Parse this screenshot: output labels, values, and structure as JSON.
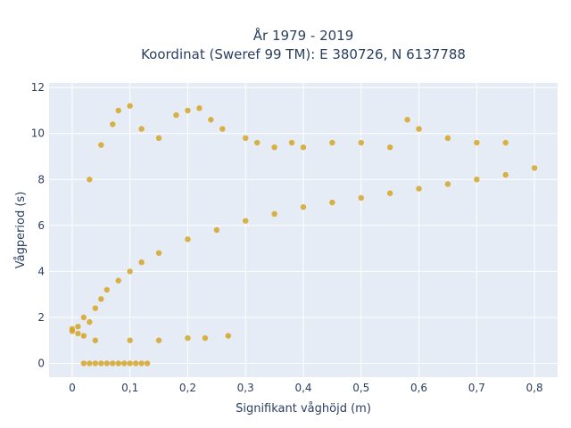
{
  "chart_data": {
    "type": "scatter",
    "title_line1": "År 1979 - 2019",
    "title_line2": "Koordinat (Sweref 99 TM): E 380726, N 6137788",
    "xlabel": "Signifikant våghöjd (m)",
    "ylabel": "Vågperiod (s)",
    "xlim": [
      -0.04,
      0.84
    ],
    "ylim": [
      -0.6,
      12.2
    ],
    "grid": true,
    "x_ticks": [
      0,
      0.1,
      0.2,
      0.3,
      0.4,
      0.5,
      0.6,
      0.7,
      0.8
    ],
    "x_tick_labels": [
      "0",
      "0,1",
      "0,2",
      "0,3",
      "0,4",
      "0,5",
      "0,6",
      "0,7",
      "0,8"
    ],
    "y_ticks": [
      0,
      2,
      4,
      6,
      8,
      10,
      12
    ],
    "y_tick_labels": [
      "0",
      "2",
      "4",
      "6",
      "8",
      "10",
      "12"
    ],
    "marker_color": "#D4A017",
    "plot_bg": "#E5ECF6",
    "series": [
      {
        "points": [
          [
            0.0,
            1.4
          ],
          [
            0.0,
            1.5
          ],
          [
            0.01,
            1.3
          ],
          [
            0.01,
            1.6
          ],
          [
            0.02,
            1.2
          ],
          [
            0.02,
            2.0
          ],
          [
            0.03,
            1.8
          ],
          [
            0.04,
            2.4
          ],
          [
            0.05,
            2.8
          ],
          [
            0.06,
            3.2
          ],
          [
            0.08,
            3.6
          ],
          [
            0.1,
            4.0
          ],
          [
            0.12,
            4.4
          ],
          [
            0.15,
            4.8
          ],
          [
            0.2,
            5.4
          ],
          [
            0.25,
            5.8
          ],
          [
            0.3,
            6.2
          ],
          [
            0.35,
            6.5
          ],
          [
            0.4,
            6.8
          ],
          [
            0.45,
            7.0
          ],
          [
            0.5,
            7.2
          ],
          [
            0.55,
            7.4
          ],
          [
            0.6,
            7.6
          ],
          [
            0.65,
            7.8
          ],
          [
            0.7,
            8.0
          ],
          [
            0.75,
            8.2
          ],
          [
            0.8,
            8.5
          ],
          [
            0.02,
            0.0
          ],
          [
            0.03,
            0.0
          ],
          [
            0.04,
            0.0
          ],
          [
            0.05,
            0.0
          ],
          [
            0.06,
            0.0
          ],
          [
            0.07,
            0.0
          ],
          [
            0.08,
            0.0
          ],
          [
            0.09,
            0.0
          ],
          [
            0.1,
            0.0
          ],
          [
            0.11,
            0.0
          ],
          [
            0.12,
            0.0
          ],
          [
            0.13,
            0.0
          ],
          [
            0.03,
            8.0
          ],
          [
            0.05,
            9.5
          ],
          [
            0.07,
            10.4
          ],
          [
            0.08,
            11.0
          ],
          [
            0.1,
            11.2
          ],
          [
            0.12,
            10.2
          ],
          [
            0.15,
            9.8
          ],
          [
            0.18,
            10.8
          ],
          [
            0.2,
            11.0
          ],
          [
            0.22,
            11.1
          ],
          [
            0.24,
            10.6
          ],
          [
            0.26,
            10.2
          ],
          [
            0.3,
            9.8
          ],
          [
            0.32,
            9.6
          ],
          [
            0.35,
            9.4
          ],
          [
            0.38,
            9.6
          ],
          [
            0.4,
            9.4
          ],
          [
            0.45,
            9.6
          ],
          [
            0.5,
            9.6
          ],
          [
            0.55,
            9.4
          ],
          [
            0.58,
            10.6
          ],
          [
            0.6,
            10.2
          ],
          [
            0.65,
            9.8
          ],
          [
            0.7,
            9.6
          ],
          [
            0.75,
            9.6
          ],
          [
            0.04,
            1.0
          ],
          [
            0.1,
            1.0
          ],
          [
            0.15,
            1.0
          ],
          [
            0.2,
            1.1
          ],
          [
            0.23,
            1.1
          ],
          [
            0.27,
            1.2
          ]
        ]
      }
    ]
  }
}
